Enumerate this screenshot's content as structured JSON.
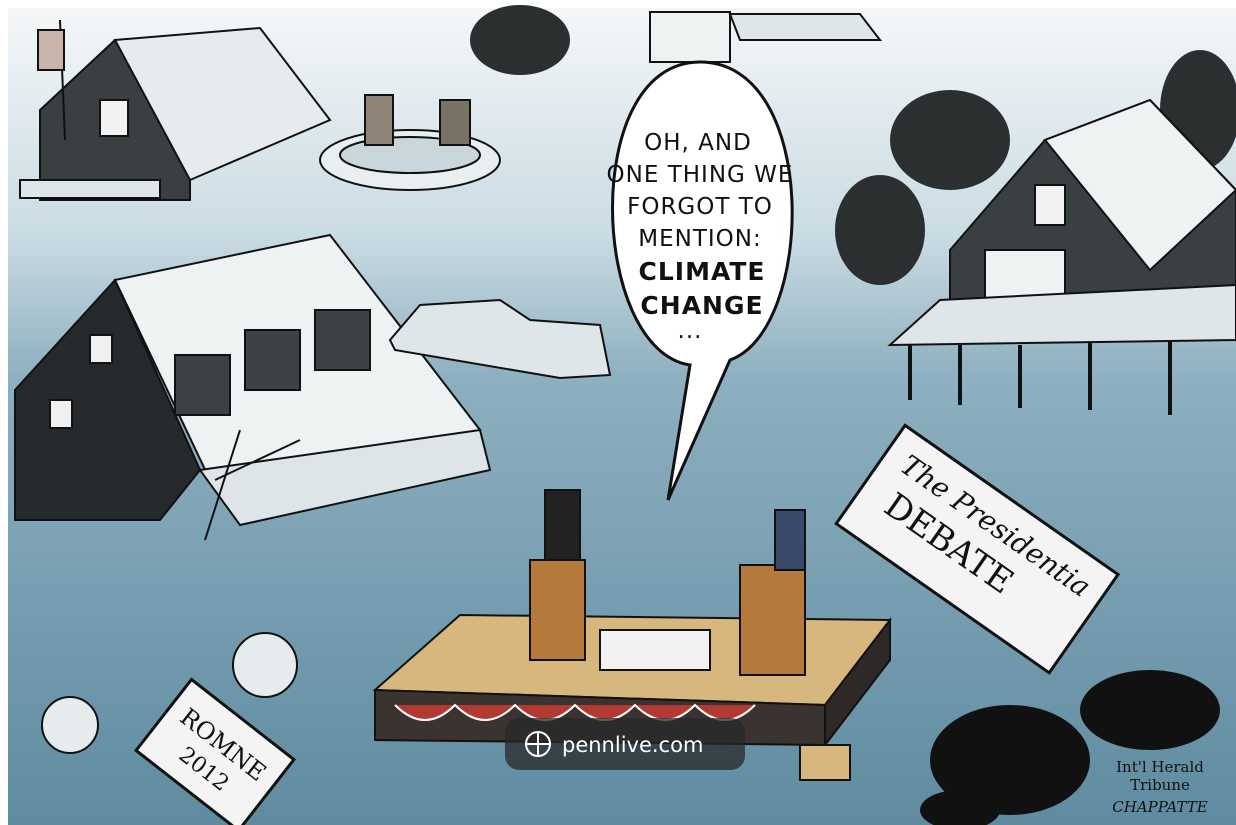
{
  "speech_bubble": {
    "lines": [
      "OH, AND",
      "ONE THING WE",
      "FORGOT TO",
      "MENTION:",
      "CLIMATE",
      "CHANGE",
      "..."
    ]
  },
  "debate_sign": {
    "lines": [
      "The Presidentia",
      "DEBATE"
    ]
  },
  "campaign_sign": {
    "lines": [
      "ROMNE",
      "2012"
    ]
  },
  "watermark": {
    "text": "pennlive.com"
  },
  "signature": {
    "lines": [
      "Int'l Herald",
      "Tribune",
      "CHAPPATTE"
    ]
  }
}
